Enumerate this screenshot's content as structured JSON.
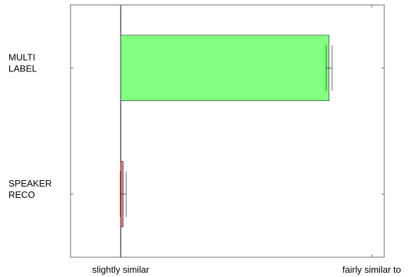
{
  "chart_data": {
    "type": "bar",
    "orientation": "horizontal",
    "categories": [
      [
        "MULTI",
        "LABEL"
      ],
      [
        "SPEAKER",
        "RECO"
      ]
    ],
    "values": [
      0.83,
      0.01
    ],
    "errors": [
      0.012,
      0.012
    ],
    "colors": [
      "#80ff80",
      "#f08080"
    ],
    "xlim": [
      -0.2,
      1.05
    ],
    "xticks": [
      {
        "value": 0,
        "label": "slightly similar"
      },
      {
        "value": 1,
        "label": "fairly similar to"
      }
    ],
    "title": "",
    "xlabel": "",
    "ylabel": "",
    "grid": false
  }
}
